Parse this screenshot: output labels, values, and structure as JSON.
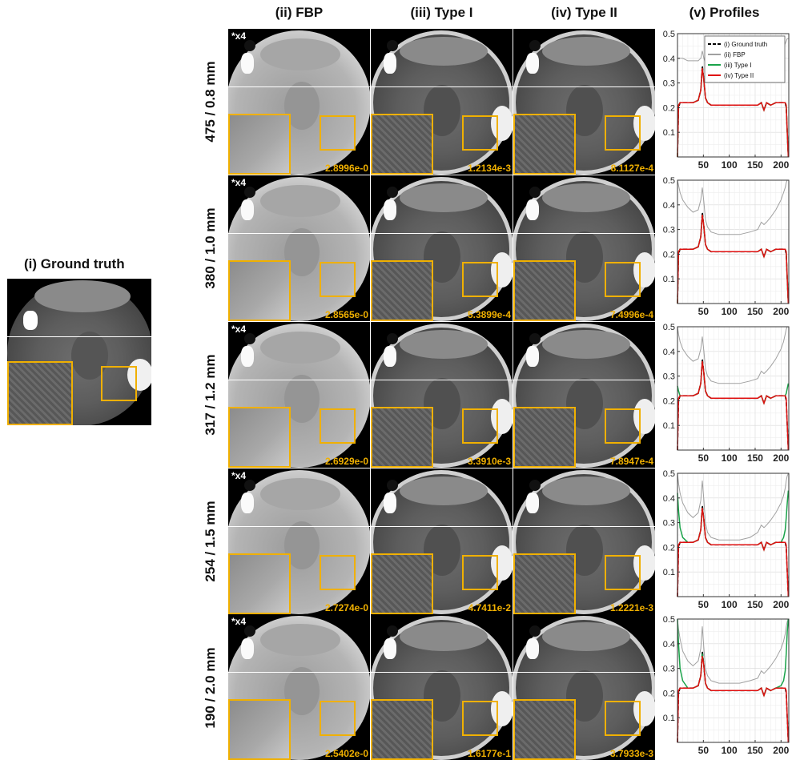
{
  "ground_truth_title": "(i) Ground truth",
  "column_titles": [
    "(ii) FBP",
    "(iii) Type I",
    "(iv) Type II",
    "(v) Profiles"
  ],
  "magnification_label": "*x4",
  "rows": [
    {
      "label": "475 / 0.8 mm",
      "errors": [
        "2.8996e-0",
        "1.2134e-3",
        "8.1127e-4"
      ]
    },
    {
      "label": "380 / 1.0 mm",
      "errors": [
        "2.8565e-0",
        "5.3899e-4",
        "7.4996e-4"
      ]
    },
    {
      "label": "317 / 1.2 mm",
      "errors": [
        "2.6929e-0",
        "3.3910e-3",
        "7.8947e-4"
      ]
    },
    {
      "label": "254 / 1.5 mm",
      "errors": [
        "2.7274e-0",
        "4.7411e-2",
        "1.2221e-3"
      ]
    },
    {
      "label": "190 / 2.0 mm",
      "errors": [
        "2.5402e-0",
        "1.6177e-1",
        "3.7933e-3"
      ]
    }
  ],
  "colors": {
    "accent": "#f0b000",
    "ground_truth": "#000000",
    "fbp": "#a0a0a0",
    "type1": "#1aa34a",
    "type2": "#e01010"
  },
  "chart_data": {
    "type": "line",
    "xlim": [
      0,
      215
    ],
    "ylim": [
      0,
      0.5
    ],
    "xticks": [
      50,
      100,
      150,
      200
    ],
    "yticks": [
      0.1,
      0.2,
      0.3,
      0.4,
      0.5
    ],
    "ytick_labels": [
      "0.1",
      "0.2",
      "0.3",
      "0.4",
      "0.5"
    ],
    "grid": true,
    "legend": {
      "placement": "top-right",
      "entries": [
        "(i)    Ground truth",
        "(ii)   FBP",
        "(iii)  Type I",
        "(iv)  Type II"
      ]
    },
    "x": [
      0,
      2,
      5,
      10,
      20,
      30,
      40,
      45,
      48,
      51,
      54,
      58,
      65,
      80,
      100,
      120,
      140,
      155,
      162,
      167,
      172,
      180,
      190,
      200,
      205,
      208,
      210,
      212,
      214
    ],
    "plots": [
      {
        "row": 1,
        "series": [
          {
            "name": "(i) Ground truth",
            "style": "dashed",
            "values": [
              0.0,
              0.2,
              0.22,
              0.22,
              0.22,
              0.22,
              0.23,
              0.27,
              0.37,
              0.31,
              0.24,
              0.22,
              0.21,
              0.21,
              0.21,
              0.21,
              0.21,
              0.21,
              0.22,
              0.19,
              0.22,
              0.21,
              0.22,
              0.22,
              0.22,
              0.22,
              0.2,
              0.1,
              0.0
            ]
          },
          {
            "name": "(ii) FBP",
            "style": "solid",
            "values": [
              0.4,
              0.4,
              0.4,
              0.4,
              0.39,
              0.39,
              0.39,
              0.4,
              0.43,
              0.4,
              0.38,
              0.37,
              0.36,
              0.35,
              0.34,
              0.34,
              0.35,
              0.36,
              0.38,
              0.37,
              0.38,
              0.39,
              0.4,
              0.42,
              0.44,
              0.46,
              0.47,
              0.48,
              0.48
            ]
          },
          {
            "name": "(iii) Type I",
            "style": "solid",
            "values": [
              0.0,
              0.21,
              0.22,
              0.22,
              0.22,
              0.22,
              0.23,
              0.27,
              0.36,
              0.31,
              0.24,
              0.22,
              0.21,
              0.21,
              0.21,
              0.21,
              0.21,
              0.21,
              0.22,
              0.19,
              0.22,
              0.21,
              0.22,
              0.22,
              0.22,
              0.22,
              0.21,
              0.1,
              0.0
            ]
          },
          {
            "name": "(iv) Type II",
            "style": "solid",
            "values": [
              0.0,
              0.21,
              0.22,
              0.22,
              0.22,
              0.22,
              0.23,
              0.27,
              0.36,
              0.31,
              0.24,
              0.22,
              0.21,
              0.21,
              0.21,
              0.21,
              0.21,
              0.21,
              0.22,
              0.19,
              0.22,
              0.21,
              0.22,
              0.22,
              0.22,
              0.22,
              0.21,
              0.1,
              0.0
            ]
          }
        ]
      },
      {
        "row": 2,
        "series": [
          {
            "name": "(i) Ground truth",
            "style": "dashed",
            "values": [
              0.0,
              0.2,
              0.22,
              0.22,
              0.22,
              0.22,
              0.23,
              0.27,
              0.37,
              0.31,
              0.24,
              0.22,
              0.21,
              0.21,
              0.21,
              0.21,
              0.21,
              0.21,
              0.22,
              0.19,
              0.22,
              0.21,
              0.22,
              0.22,
              0.22,
              0.22,
              0.2,
              0.1,
              0.0
            ]
          },
          {
            "name": "(ii) FBP",
            "style": "solid",
            "values": [
              0.5,
              0.48,
              0.45,
              0.42,
              0.39,
              0.37,
              0.38,
              0.42,
              0.47,
              0.41,
              0.34,
              0.31,
              0.29,
              0.28,
              0.28,
              0.28,
              0.29,
              0.3,
              0.33,
              0.32,
              0.33,
              0.35,
              0.38,
              0.42,
              0.45,
              0.47,
              0.49,
              0.5,
              0.5
            ]
          },
          {
            "name": "(iii) Type I",
            "style": "solid",
            "values": [
              0.0,
              0.21,
              0.22,
              0.22,
              0.22,
              0.22,
              0.23,
              0.27,
              0.36,
              0.31,
              0.24,
              0.22,
              0.21,
              0.21,
              0.21,
              0.21,
              0.21,
              0.21,
              0.22,
              0.19,
              0.22,
              0.21,
              0.22,
              0.22,
              0.22,
              0.22,
              0.21,
              0.1,
              0.0
            ]
          },
          {
            "name": "(iv) Type II",
            "style": "solid",
            "values": [
              0.0,
              0.21,
              0.22,
              0.22,
              0.22,
              0.22,
              0.23,
              0.27,
              0.36,
              0.31,
              0.24,
              0.22,
              0.21,
              0.21,
              0.21,
              0.21,
              0.21,
              0.21,
              0.22,
              0.19,
              0.22,
              0.21,
              0.22,
              0.22,
              0.22,
              0.22,
              0.21,
              0.1,
              0.0
            ]
          }
        ]
      },
      {
        "row": 3,
        "series": [
          {
            "name": "(i) Ground truth",
            "style": "dashed",
            "values": [
              0.0,
              0.2,
              0.22,
              0.22,
              0.22,
              0.22,
              0.23,
              0.27,
              0.37,
              0.31,
              0.24,
              0.22,
              0.21,
              0.21,
              0.21,
              0.21,
              0.21,
              0.21,
              0.22,
              0.19,
              0.22,
              0.21,
              0.22,
              0.22,
              0.22,
              0.22,
              0.2,
              0.1,
              0.0
            ]
          },
          {
            "name": "(ii) FBP",
            "style": "solid",
            "values": [
              0.5,
              0.47,
              0.44,
              0.41,
              0.38,
              0.36,
              0.37,
              0.41,
              0.46,
              0.4,
              0.33,
              0.3,
              0.28,
              0.27,
              0.27,
              0.27,
              0.28,
              0.29,
              0.32,
              0.31,
              0.32,
              0.34,
              0.37,
              0.41,
              0.44,
              0.47,
              0.49,
              0.5,
              0.5
            ]
          },
          {
            "name": "(iii) Type I",
            "style": "solid",
            "values": [
              0.26,
              0.24,
              0.22,
              0.22,
              0.22,
              0.22,
              0.23,
              0.27,
              0.36,
              0.31,
              0.24,
              0.22,
              0.21,
              0.21,
              0.21,
              0.21,
              0.21,
              0.21,
              0.22,
              0.19,
              0.22,
              0.21,
              0.22,
              0.22,
              0.22,
              0.22,
              0.23,
              0.25,
              0.27
            ]
          },
          {
            "name": "(iv) Type II",
            "style": "solid",
            "values": [
              0.0,
              0.21,
              0.22,
              0.22,
              0.22,
              0.22,
              0.23,
              0.27,
              0.36,
              0.31,
              0.24,
              0.22,
              0.21,
              0.21,
              0.21,
              0.21,
              0.21,
              0.21,
              0.22,
              0.19,
              0.22,
              0.21,
              0.22,
              0.22,
              0.22,
              0.22,
              0.21,
              0.1,
              0.0
            ]
          }
        ]
      },
      {
        "row": 4,
        "series": [
          {
            "name": "(i) Ground truth",
            "style": "dashed",
            "values": [
              0.0,
              0.2,
              0.22,
              0.22,
              0.22,
              0.22,
              0.23,
              0.27,
              0.37,
              0.31,
              0.24,
              0.22,
              0.21,
              0.21,
              0.21,
              0.21,
              0.21,
              0.21,
              0.22,
              0.19,
              0.22,
              0.21,
              0.22,
              0.22,
              0.22,
              0.22,
              0.2,
              0.1,
              0.0
            ]
          },
          {
            "name": "(ii) FBP",
            "style": "solid",
            "values": [
              0.5,
              0.46,
              0.42,
              0.38,
              0.34,
              0.32,
              0.34,
              0.39,
              0.47,
              0.39,
              0.3,
              0.26,
              0.24,
              0.23,
              0.23,
              0.23,
              0.24,
              0.26,
              0.29,
              0.28,
              0.29,
              0.31,
              0.34,
              0.38,
              0.41,
              0.44,
              0.47,
              0.49,
              0.5
            ]
          },
          {
            "name": "(iii) Type I",
            "style": "solid",
            "values": [
              0.42,
              0.35,
              0.28,
              0.24,
              0.22,
              0.22,
              0.23,
              0.27,
              0.36,
              0.31,
              0.24,
              0.22,
              0.21,
              0.21,
              0.21,
              0.21,
              0.21,
              0.21,
              0.22,
              0.19,
              0.22,
              0.21,
              0.22,
              0.22,
              0.24,
              0.27,
              0.32,
              0.38,
              0.43
            ]
          },
          {
            "name": "(iv) Type II",
            "style": "solid",
            "values": [
              0.0,
              0.21,
              0.22,
              0.22,
              0.22,
              0.22,
              0.23,
              0.27,
              0.36,
              0.31,
              0.24,
              0.22,
              0.21,
              0.21,
              0.21,
              0.21,
              0.21,
              0.21,
              0.22,
              0.19,
              0.22,
              0.21,
              0.22,
              0.22,
              0.22,
              0.22,
              0.21,
              0.1,
              0.0
            ]
          }
        ]
      },
      {
        "row": 5,
        "series": [
          {
            "name": "(i) Ground truth",
            "style": "dashed",
            "values": [
              0.0,
              0.2,
              0.22,
              0.22,
              0.22,
              0.22,
              0.23,
              0.27,
              0.37,
              0.31,
              0.24,
              0.22,
              0.21,
              0.21,
              0.21,
              0.21,
              0.21,
              0.21,
              0.22,
              0.19,
              0.22,
              0.21,
              0.22,
              0.22,
              0.22,
              0.22,
              0.2,
              0.1,
              0.0
            ]
          },
          {
            "name": "(ii) FBP",
            "style": "solid",
            "values": [
              0.5,
              0.46,
              0.42,
              0.37,
              0.33,
              0.31,
              0.33,
              0.38,
              0.47,
              0.38,
              0.3,
              0.27,
              0.25,
              0.24,
              0.24,
              0.24,
              0.25,
              0.26,
              0.29,
              0.28,
              0.29,
              0.31,
              0.34,
              0.38,
              0.41,
              0.44,
              0.47,
              0.49,
              0.5
            ]
          },
          {
            "name": "(iii) Type I",
            "style": "solid",
            "values": [
              0.5,
              0.4,
              0.3,
              0.25,
              0.22,
              0.22,
              0.23,
              0.27,
              0.36,
              0.31,
              0.24,
              0.22,
              0.21,
              0.21,
              0.21,
              0.21,
              0.21,
              0.21,
              0.22,
              0.19,
              0.22,
              0.21,
              0.22,
              0.23,
              0.25,
              0.29,
              0.36,
              0.45,
              0.5
            ]
          },
          {
            "name": "(iv) Type II",
            "style": "solid",
            "values": [
              0.0,
              0.21,
              0.22,
              0.22,
              0.22,
              0.22,
              0.23,
              0.27,
              0.35,
              0.31,
              0.24,
              0.22,
              0.21,
              0.21,
              0.21,
              0.21,
              0.21,
              0.21,
              0.22,
              0.19,
              0.22,
              0.21,
              0.22,
              0.22,
              0.22,
              0.22,
              0.21,
              0.1,
              0.0
            ]
          }
        ]
      }
    ]
  }
}
